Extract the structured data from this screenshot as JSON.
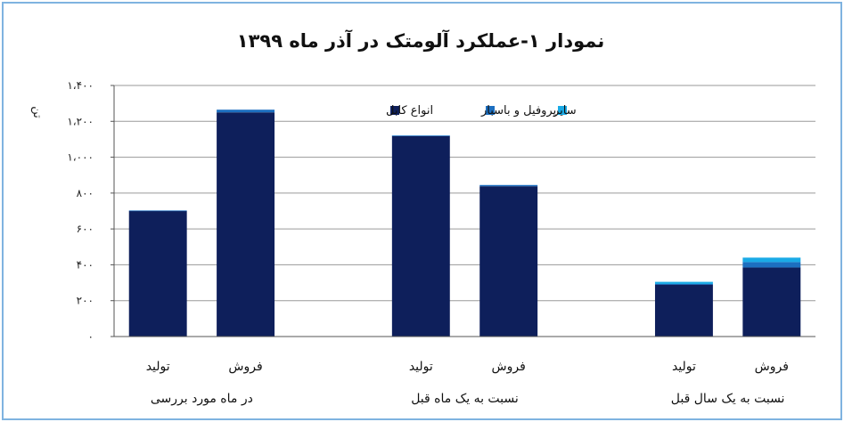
{
  "chart_data": {
    "type": "bar",
    "stacked": true,
    "title": "نمودار ۱-عملکرد آلومتک در آذر ماه ۱۳۹۹",
    "ylabel": "تن",
    "ylim": [
      0,
      1400
    ],
    "yticks": [
      0,
      200,
      400,
      600,
      800,
      1000,
      1200,
      1400
    ],
    "ytick_labels": [
      "۰",
      "۲۰۰",
      "۴۰۰",
      "۶۰۰",
      "۸۰۰",
      "۱،۰۰۰",
      "۱،۲۰۰",
      "۱،۴۰۰"
    ],
    "grid": true,
    "legend_position": "top",
    "groups": [
      {
        "label": "در ماه مورد بررسی",
        "categories": [
          "فروش",
          "تولید"
        ]
      },
      {
        "label": "نسبت به یک ماه قبل",
        "categories": [
          "فروش",
          "تولید"
        ]
      },
      {
        "label": "نسبت به یک سال قبل",
        "categories": [
          "فروش",
          "تولید"
        ]
      }
    ],
    "categories": [
      "فروش",
      "تولید",
      "فروش",
      "تولید",
      "فروش",
      "تولید"
    ],
    "series": [
      {
        "name": "انواع کابل",
        "color": "#0e1f5b",
        "values": [
          1250,
          700,
          838,
          1118,
          385,
          290
        ]
      },
      {
        "name": "پروفیل و باسبار",
        "color": "#1c6fc0",
        "values": [
          15,
          3,
          7,
          3,
          30,
          3
        ]
      },
      {
        "name": "سایر",
        "color": "#1aaae6",
        "values": [
          0,
          0,
          0,
          0,
          25,
          12
        ]
      }
    ]
  }
}
